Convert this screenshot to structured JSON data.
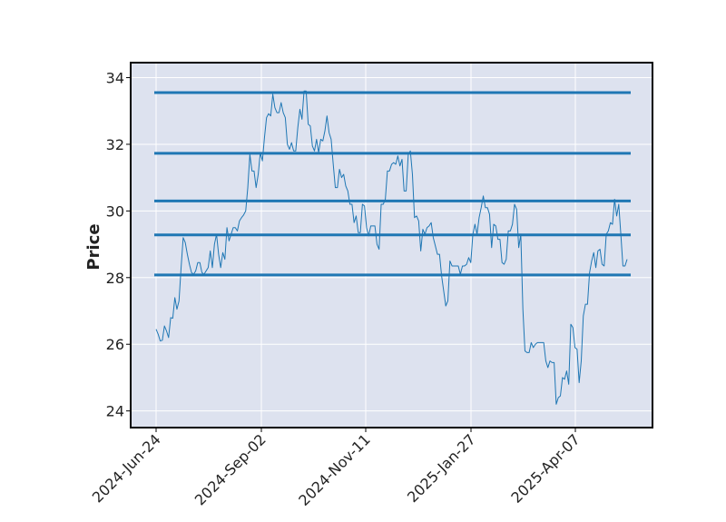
{
  "chart_data": {
    "type": "line",
    "title": "",
    "xlabel": "",
    "ylabel": "Price",
    "ylim": [
      23.5,
      34.45
    ],
    "x_tick_labels": [
      "2024-Jun-24",
      "2024-Sep-02",
      "2024-Nov-11",
      "2025-Jan-27",
      "2025-Apr-07"
    ],
    "y_ticks": [
      24,
      26,
      28,
      30,
      32,
      34
    ],
    "grid": true,
    "plot_background": "#dde2ef",
    "line_color": "#1f77b4",
    "support_resistance_levels": [
      33.55,
      31.73,
      30.3,
      29.28,
      28.08
    ],
    "series": [
      {
        "values": [
          26.45,
          26.3,
          26.1,
          26.12,
          26.55,
          26.4,
          26.2,
          26.8,
          26.78,
          27.4,
          27.05,
          27.3,
          28.3,
          29.2,
          29.05,
          28.7,
          28.4,
          28.15,
          28.1,
          28.2,
          28.45,
          28.45,
          28.15,
          28.1,
          28.2,
          28.3,
          28.8,
          28.3,
          29.0,
          29.3,
          28.7,
          28.3,
          28.75,
          28.55,
          29.5,
          29.1,
          29.3,
          29.5,
          29.5,
          29.4,
          29.7,
          29.8,
          29.88,
          30.0,
          30.7,
          31.7,
          31.2,
          31.2,
          30.7,
          31.1,
          31.75,
          31.5,
          32.2,
          32.8,
          32.92,
          32.85,
          33.5,
          33.1,
          32.95,
          32.95,
          33.25,
          32.95,
          32.8,
          32.0,
          31.85,
          32.05,
          31.8,
          31.8,
          32.5,
          33.05,
          32.75,
          33.6,
          33.6,
          32.6,
          32.55,
          31.95,
          31.8,
          32.15,
          31.75,
          32.15,
          32.1,
          32.4,
          32.85,
          32.35,
          32.15,
          31.4,
          30.7,
          30.7,
          31.25,
          31.0,
          31.1,
          30.75,
          30.6,
          30.2,
          30.2,
          29.65,
          29.85,
          29.35,
          29.35,
          30.2,
          30.15,
          29.5,
          29.25,
          29.55,
          29.55,
          29.55,
          29.0,
          28.85,
          30.2,
          30.2,
          30.35,
          31.2,
          31.2,
          31.4,
          31.45,
          31.4,
          31.65,
          31.35,
          31.55,
          30.6,
          30.6,
          31.7,
          31.8,
          31.1,
          29.8,
          29.85,
          29.7,
          28.8,
          29.45,
          29.3,
          29.5,
          29.55,
          29.65,
          29.2,
          28.95,
          28.7,
          28.7,
          28.05,
          27.6,
          27.15,
          27.3,
          28.5,
          28.35,
          28.35,
          28.35,
          28.35,
          28.1,
          28.35,
          28.35,
          28.4,
          28.6,
          28.45,
          29.3,
          29.6,
          29.3,
          29.8,
          30.1,
          30.45,
          30.1,
          30.1,
          29.9,
          28.9,
          29.6,
          29.55,
          29.15,
          29.15,
          28.45,
          28.4,
          28.55,
          29.4,
          29.4,
          29.6,
          30.2,
          30.05,
          28.9,
          29.3,
          27.05,
          25.8,
          25.75,
          25.75,
          26.05,
          25.9,
          26.0,
          26.05,
          26.05,
          26.05,
          26.05,
          25.5,
          25.3,
          25.5,
          25.45,
          25.45,
          24.2,
          24.4,
          24.45,
          25.0,
          24.95,
          25.2,
          24.8,
          26.6,
          26.5,
          25.9,
          25.85,
          24.85,
          25.5,
          26.85,
          27.2,
          27.2,
          28.15,
          28.5,
          28.75,
          28.3,
          28.8,
          28.85,
          28.4,
          28.35,
          29.3,
          29.4,
          29.65,
          29.6,
          30.35,
          29.85,
          30.2,
          29.3,
          28.35,
          28.35,
          28.55
        ]
      }
    ]
  }
}
